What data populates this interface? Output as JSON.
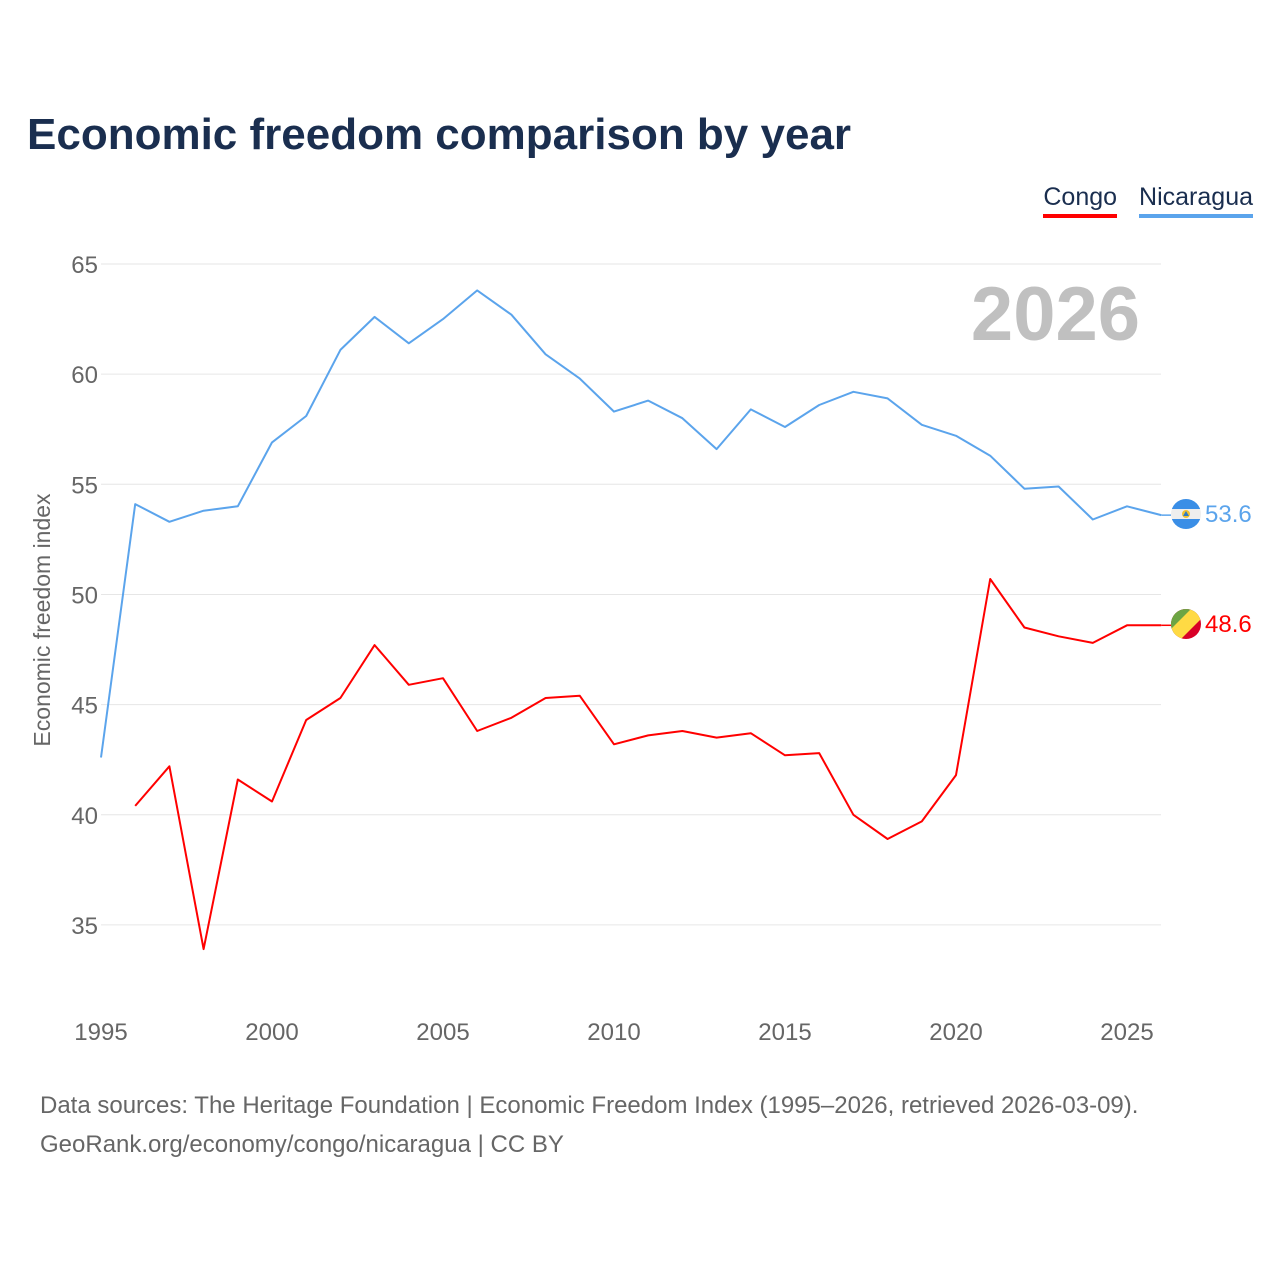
{
  "title": "Economic freedom comparison by year",
  "current_year": "2026",
  "footer": {
    "line1": "Data sources: The Heritage Foundation | Economic Freedom Index (1995–2026, retrieved 2026-03-09).",
    "line2": "GeoRank.org/economy/congo/nicaragua | CC BY"
  },
  "chart_data": {
    "type": "line",
    "title": "Economic freedom comparison by year",
    "xlabel": "",
    "ylabel": "Economic freedom index",
    "xlim": [
      1995,
      2026
    ],
    "ylim": [
      31,
      66
    ],
    "xticks": [
      1995,
      2000,
      2005,
      2010,
      2015,
      2020,
      2025
    ],
    "yticks": [
      35,
      40,
      45,
      50,
      55,
      60,
      65
    ],
    "grid": true,
    "legend_position": "top-right",
    "series": [
      {
        "name": "Congo",
        "color": "#ff0000",
        "end_label": "48.6",
        "flag": "congo-flag",
        "x": [
          1996,
          1997,
          1998,
          1999,
          2000,
          2001,
          2002,
          2003,
          2004,
          2005,
          2006,
          2007,
          2008,
          2009,
          2010,
          2011,
          2012,
          2013,
          2014,
          2015,
          2016,
          2017,
          2018,
          2019,
          2020,
          2021,
          2022,
          2023,
          2024,
          2025,
          2026
        ],
        "values": [
          40.4,
          42.2,
          33.9,
          41.6,
          40.6,
          44.3,
          45.3,
          47.7,
          45.9,
          46.2,
          43.8,
          44.4,
          45.3,
          45.4,
          43.2,
          43.6,
          43.8,
          43.5,
          43.7,
          42.7,
          42.8,
          40.0,
          38.9,
          39.7,
          41.8,
          50.7,
          48.5,
          48.1,
          47.8,
          48.6,
          48.6
        ]
      },
      {
        "name": "Nicaragua",
        "color": "#5ba4ec",
        "end_label": "53.6",
        "flag": "nicaragua-flag",
        "x": [
          1995,
          1996,
          1997,
          1998,
          1999,
          2000,
          2001,
          2002,
          2003,
          2004,
          2005,
          2006,
          2007,
          2008,
          2009,
          2010,
          2011,
          2012,
          2013,
          2014,
          2015,
          2016,
          2017,
          2018,
          2019,
          2020,
          2021,
          2022,
          2023,
          2024,
          2025,
          2026
        ],
        "values": [
          42.6,
          54.1,
          53.3,
          53.8,
          54.0,
          56.9,
          58.1,
          61.1,
          62.6,
          61.4,
          62.5,
          63.8,
          62.7,
          60.9,
          59.8,
          58.3,
          58.8,
          58.0,
          56.6,
          58.4,
          57.6,
          58.6,
          59.2,
          58.9,
          57.7,
          57.2,
          56.3,
          54.8,
          54.9,
          53.4,
          54.0,
          53.6
        ]
      }
    ]
  }
}
